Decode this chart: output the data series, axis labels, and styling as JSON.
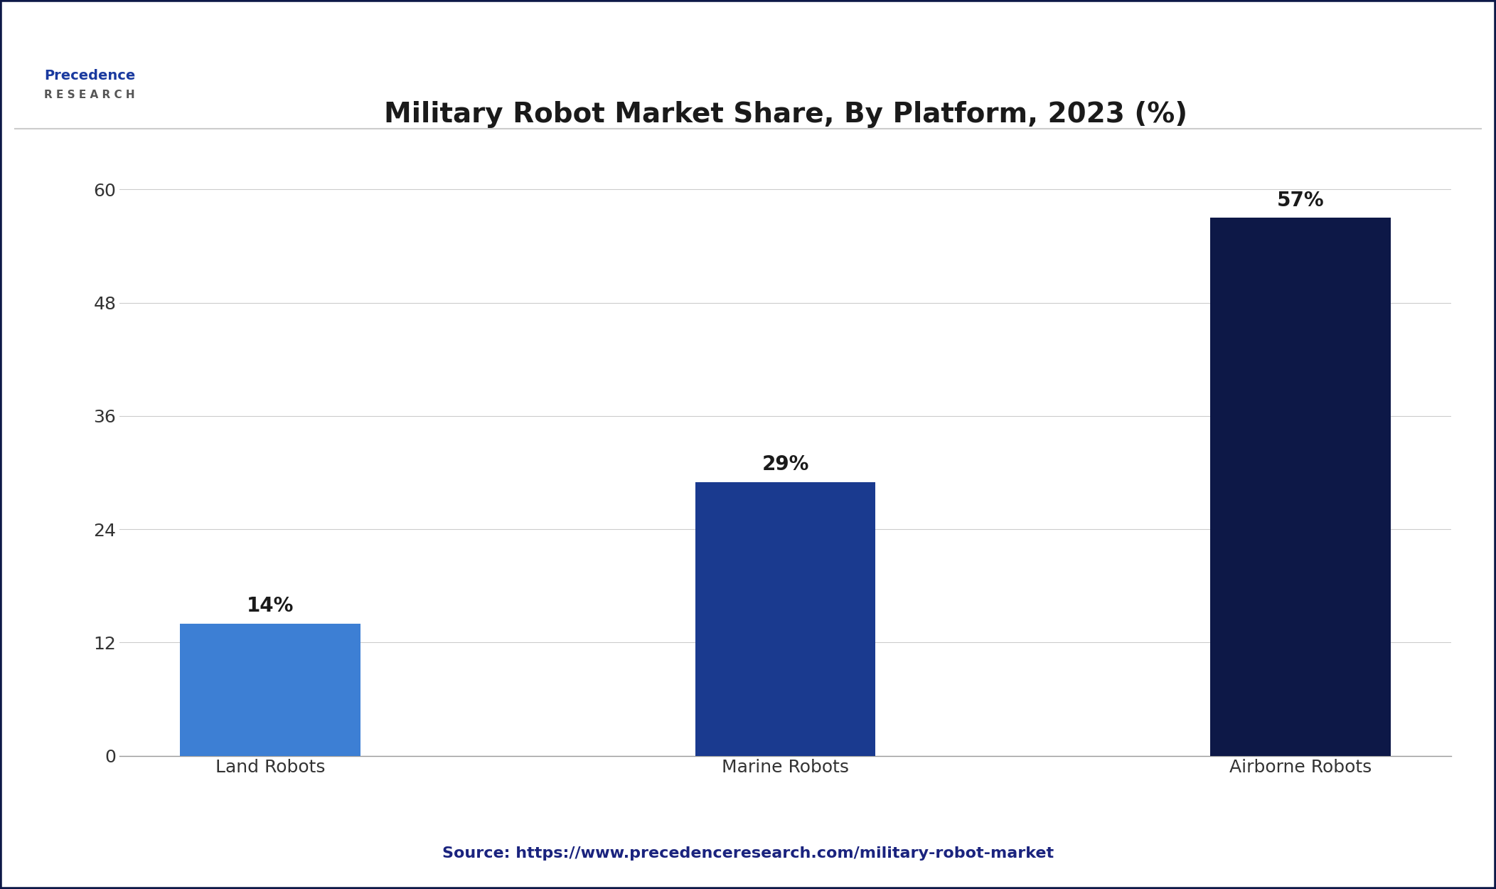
{
  "title": "Military Robot Market Share, By Platform, 2023 (%)",
  "categories": [
    "Land Robots",
    "Marine Robots",
    "Airborne Robots"
  ],
  "values": [
    14,
    29,
    57
  ],
  "labels": [
    "14%",
    "29%",
    "57%"
  ],
  "bar_colors": [
    "#3D7FD4",
    "#1A3A8F",
    "#0D1847"
  ],
  "ylim": [
    0,
    65
  ],
  "yticks": [
    0,
    12,
    24,
    36,
    48,
    60
  ],
  "background_color": "#FFFFFF",
  "plot_bg_color": "#FFFFFF",
  "grid_color": "#CCCCCC",
  "title_color": "#1a1a1a",
  "title_fontsize": 28,
  "tick_fontsize": 18,
  "annotation_fontsize": 20,
  "source_text": "Source: https://www.precedenceresearch.com/military-robot-market",
  "source_color": "#1A237E",
  "source_fontsize": 16,
  "border_color": "#0D1847",
  "bar_width": 0.35
}
